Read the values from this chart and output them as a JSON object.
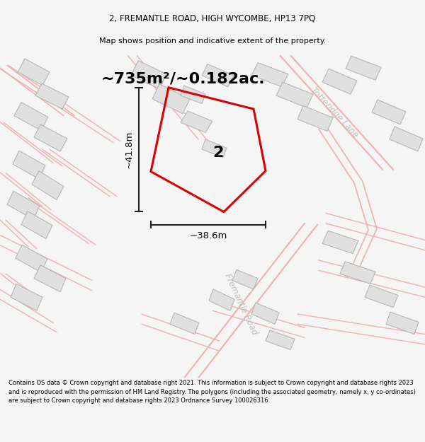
{
  "title_line1": "2, FREMANTLE ROAD, HIGH WYCOMBE, HP13 7PQ",
  "title_line2": "Map shows position and indicative extent of the property.",
  "area_text": "~735m²/~0.182ac.",
  "dim_height": "~41.8m",
  "dim_width": "~38.6m",
  "number_label": "2",
  "road_label1": "Totteridge Lane",
  "road_label2": "Fremantle Road",
  "footer_text": "Contains OS data © Crown copyright and database right 2021. This information is subject to Crown copyright and database rights 2023 and is reproduced with the permission of HM Land Registry. The polygons (including the associated geometry, namely x, y co-ordinates) are subject to Crown copyright and database rights 2023 Ordnance Survey 100026316.",
  "bg_color": "#f5f5f5",
  "map_bg": "#ffffff",
  "plot_color": "#dd0000",
  "plot_fill": "none",
  "building_color": "#e0e0e0",
  "road_line_color": "#f0b0b0",
  "dim_line_color": "#222222",
  "title_fontsize": 8.5,
  "subtitle_fontsize": 8,
  "area_fontsize": 16,
  "dim_fontsize": 9.5,
  "number_fontsize": 16,
  "road_label_color": "#c0c0c0",
  "road_label_fontsize": 8.5
}
